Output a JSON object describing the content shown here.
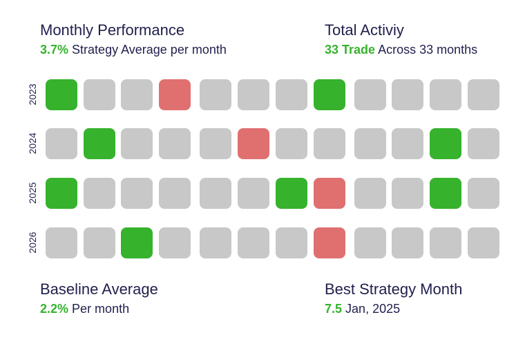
{
  "colors": {
    "positive": "#36b22d",
    "negative": "#e07070",
    "neutral": "#c8c8c8",
    "text": "#1f1f4d",
    "accent": "#36b22d"
  },
  "monthly": {
    "title": "Monthly Performance",
    "value": "3.7%",
    "desc": "Strategy Average per month"
  },
  "activity": {
    "title": "Total Activiy",
    "value": "33 Trade",
    "desc": "Across 33 months"
  },
  "baseline": {
    "title": "Baseline Average",
    "value": "2.2%",
    "desc": "Per month"
  },
  "best": {
    "title": "Best Strategy Month",
    "value": "7.5",
    "desc": "Jan, 2025"
  },
  "heatmap": {
    "rows": [
      {
        "year": "2023",
        "cells": [
          "pos",
          "neu",
          "neu",
          "neg",
          "neu",
          "neu",
          "neu",
          "pos",
          "neu",
          "neu",
          "neu",
          "neu"
        ]
      },
      {
        "year": "2024",
        "cells": [
          "neu",
          "pos",
          "neu",
          "neu",
          "neu",
          "neg",
          "neu",
          "neu",
          "neu",
          "neu",
          "pos",
          "neu"
        ]
      },
      {
        "year": "2025",
        "cells": [
          "pos",
          "neu",
          "neu",
          "neu",
          "neu",
          "neu",
          "pos",
          "neg",
          "neu",
          "neu",
          "pos",
          "neu"
        ]
      },
      {
        "year": "2026",
        "cells": [
          "neu",
          "neu",
          "pos",
          "neu",
          "neu",
          "neu",
          "neu",
          "neg",
          "neu",
          "neu",
          "neu",
          "neu"
        ]
      }
    ]
  }
}
